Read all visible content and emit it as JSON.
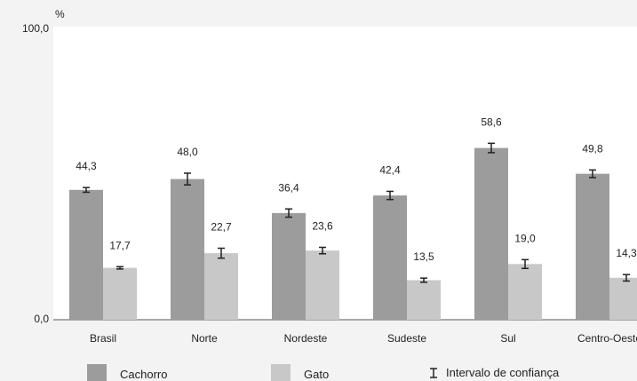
{
  "chart_data": {
    "type": "bar",
    "title": "",
    "xlabel": "",
    "ylabel": "%",
    "ylim": [
      0,
      100
    ],
    "y_ticks": [
      "100,0",
      "0,0"
    ],
    "grid": false,
    "categories": [
      "Brasil",
      "Norte",
      "Nordeste",
      "Sudeste",
      "Sul",
      "Centro-Oeste"
    ],
    "series": [
      {
        "name": "Cachorro",
        "color": "#9c9c9c",
        "values": [
          44.3,
          48.0,
          36.4,
          42.4,
          58.6,
          49.8
        ],
        "labels": [
          "44,3",
          "48,0",
          "36,4",
          "42,4",
          "58,6",
          "49,8"
        ],
        "ci_low": [
          43.5,
          46.0,
          35.0,
          41.0,
          57.0,
          48.5
        ],
        "ci_high": [
          45.1,
          50.0,
          37.8,
          43.8,
          60.2,
          51.1
        ]
      },
      {
        "name": "Gato",
        "color": "#c8c8c8",
        "values": [
          17.7,
          22.7,
          23.6,
          13.5,
          19.0,
          14.3
        ],
        "labels": [
          "17,7",
          "22,7",
          "23,6",
          "13,5",
          "19,0",
          "14,3"
        ],
        "ci_low": [
          17.3,
          21.0,
          22.5,
          12.8,
          17.5,
          13.2
        ],
        "ci_high": [
          18.1,
          24.4,
          24.7,
          14.2,
          20.5,
          15.4
        ]
      }
    ],
    "legend": {
      "position": "bottom",
      "ci_label": "Intervalo de confiança"
    }
  }
}
